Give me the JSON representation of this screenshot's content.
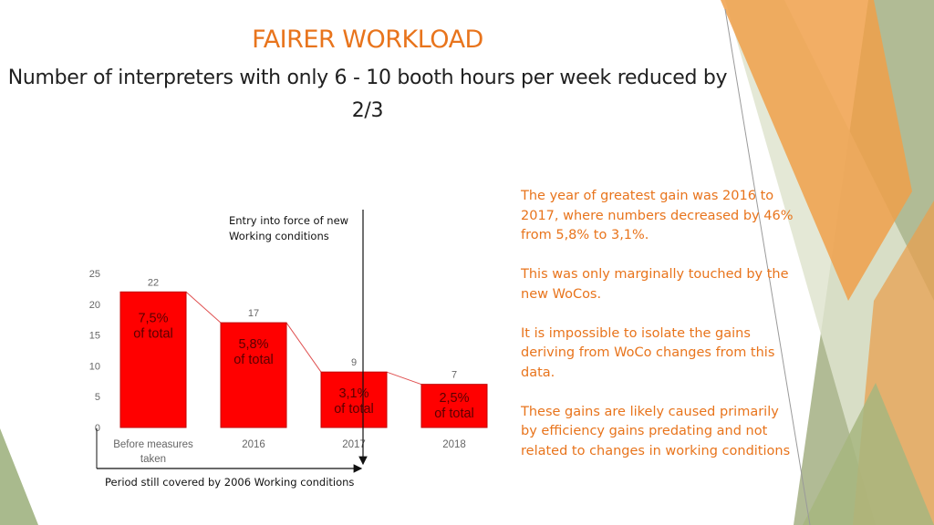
{
  "slide": {
    "title": "FAIRER WORKLOAD",
    "subtitle": "Number of interpreters with only 6 - 10 booth hours  per week reduced by 2/3",
    "annotation_top": "Entry into force of new Working conditions",
    "annotation_bottom": "Period still covered by 2006 Working conditions",
    "notes": [
      "The year of greatest gain was 2016 to 2017, where numbers decreased by 46% from 5,8% to 3,1%.",
      "This was only marginally touched by the new WoCos.",
      "It is impossible to isolate the gains deriving from WoCo changes from this data.",
      "These gains are likely caused primarily by efficiency gains predating and not related to changes in working conditions"
    ],
    "colors": {
      "accent": "#e8741c",
      "bar": "#ff0000",
      "bar_border": "#c00000",
      "connector": "#e05050"
    }
  },
  "chart_data": {
    "type": "bar",
    "categories": [
      "Before measures taken",
      "2016",
      "2017",
      "2018"
    ],
    "values": [
      22,
      17,
      9,
      7
    ],
    "data_labels": [
      "22",
      "17",
      "9",
      "7"
    ],
    "share_labels": [
      [
        "7,5%",
        "of total"
      ],
      [
        "5,8%",
        "of total"
      ],
      [
        "3,1%",
        "of total"
      ],
      [
        "2,5%",
        "of total"
      ]
    ],
    "yticks": [
      "0",
      "5",
      "10",
      "15",
      "20",
      "25"
    ],
    "ylim": [
      0,
      25
    ],
    "grid": false,
    "legend": "none",
    "connector_lines": true
  }
}
